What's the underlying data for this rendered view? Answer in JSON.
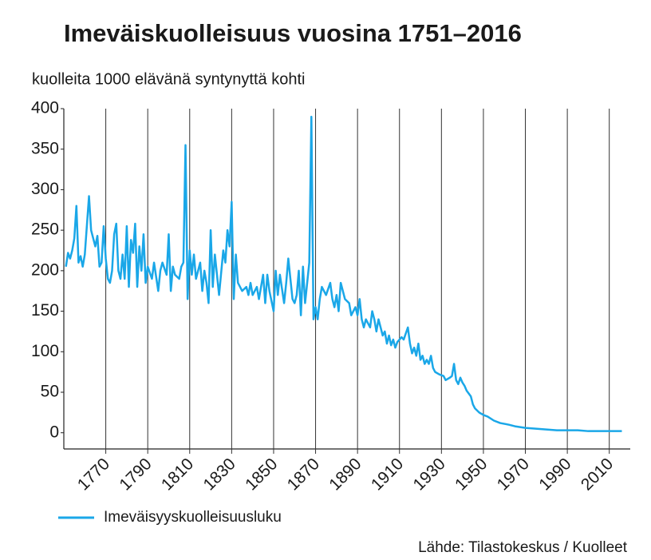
{
  "chart_data": {
    "type": "line",
    "title": "Imeväiskuolleisuus vuosina 1751–2016",
    "subtitle": "kuolleita 1000 elävänä syntynyttä kohti",
    "source": "Lähde: Tilastokeskus / Kuolleet",
    "xlim": [
      1750,
      2020
    ],
    "xticks": [
      1770,
      1790,
      1810,
      1830,
      1850,
      1870,
      1890,
      1910,
      1930,
      1950,
      1970,
      1990,
      2010
    ],
    "ylim": [
      -20,
      400
    ],
    "yticks": [
      0,
      50,
      100,
      150,
      200,
      250,
      300,
      350,
      400
    ],
    "grid": true,
    "legend": "bottom-left",
    "x": [
      1751,
      1752,
      1753,
      1754,
      1755,
      1756,
      1757,
      1758,
      1759,
      1760,
      1762,
      1763,
      1764,
      1765,
      1766,
      1767,
      1768,
      1769,
      1770,
      1771,
      1772,
      1773,
      1774,
      1775,
      1776,
      1777,
      1778,
      1779,
      1780,
      1781,
      1782,
      1783,
      1784,
      1785,
      1786,
      1787,
      1788,
      1789,
      1790,
      1792,
      1793,
      1795,
      1796,
      1797,
      1799,
      1800,
      1801,
      1802,
      1803,
      1805,
      1806,
      1807,
      1808,
      1809,
      1810,
      1811,
      1812,
      1813,
      1815,
      1816,
      1817,
      1818,
      1819,
      1820,
      1821,
      1822,
      1823,
      1824,
      1826,
      1827,
      1828,
      1829,
      1830,
      1831,
      1832,
      1833,
      1835,
      1837,
      1838,
      1839,
      1840,
      1842,
      1843,
      1845,
      1846,
      1847,
      1848,
      1850,
      1851,
      1852,
      1853,
      1855,
      1856,
      1857,
      1858,
      1859,
      1860,
      1861,
      1862,
      1863,
      1864,
      1865,
      1866,
      1867,
      1868,
      1869,
      1870,
      1871,
      1872,
      1873,
      1875,
      1877,
      1878,
      1879,
      1880,
      1881,
      1882,
      1884,
      1886,
      1887,
      1888,
      1889,
      1890,
      1891,
      1892,
      1893,
      1894,
      1896,
      1897,
      1898,
      1899,
      1900,
      1902,
      1903,
      1904,
      1905,
      1906,
      1907,
      1908,
      1909,
      1911,
      1912,
      1914,
      1915,
      1916,
      1917,
      1918,
      1919,
      1920,
      1921,
      1922,
      1923,
      1924,
      1925,
      1926,
      1927,
      1929,
      1931,
      1932,
      1934,
      1935,
      1936,
      1937,
      1938,
      1939,
      1940,
      1941,
      1942,
      1944,
      1945,
      1946,
      1948,
      1950,
      1952,
      1955,
      1958,
      1962,
      1965,
      1970,
      1975,
      1980,
      1985,
      1990,
      1995,
      2000,
      2005,
      2010,
      2016
    ],
    "series": [
      {
        "name": "Imeväisyyskuolleisuusluku",
        "color": "#1aa7e8",
        "values": [
          205,
          222,
          215,
          225,
          240,
          280,
          210,
          218,
          205,
          220,
          292,
          250,
          240,
          230,
          243,
          205,
          210,
          255,
          215,
          190,
          185,
          200,
          245,
          258,
          200,
          190,
          220,
          190,
          255,
          180,
          238,
          222,
          258,
          180,
          230,
          200,
          245,
          185,
          205,
          190,
          210,
          175,
          200,
          210,
          195,
          245,
          175,
          205,
          195,
          190,
          205,
          210,
          355,
          165,
          225,
          195,
          220,
          190,
          210,
          175,
          200,
          185,
          160,
          250,
          180,
          220,
          195,
          170,
          225,
          210,
          250,
          230,
          285,
          165,
          220,
          185,
          175,
          180,
          170,
          185,
          170,
          180,
          165,
          195,
          160,
          195,
          175,
          150,
          200,
          170,
          195,
          160,
          185,
          215,
          190,
          165,
          160,
          170,
          200,
          145,
          205,
          160,
          185,
          210,
          390,
          140,
          155,
          140,
          165,
          180,
          170,
          185,
          165,
          155,
          170,
          150,
          185,
          165,
          160,
          145,
          150,
          155,
          145,
          165,
          140,
          130,
          140,
          130,
          150,
          140,
          125,
          140,
          120,
          125,
          110,
          120,
          108,
          115,
          105,
          112,
          118,
          115,
          130,
          110,
          98,
          105,
          95,
          110,
          90,
          95,
          85,
          90,
          85,
          95,
          80,
          75,
          72,
          70,
          65,
          68,
          70,
          85,
          65,
          60,
          68,
          62,
          58,
          52,
          45,
          35,
          30,
          25,
          22,
          20,
          15,
          12,
          10,
          8,
          6,
          5,
          4,
          3,
          3,
          3,
          2,
          2,
          2,
          2
        ]
      }
    ]
  }
}
